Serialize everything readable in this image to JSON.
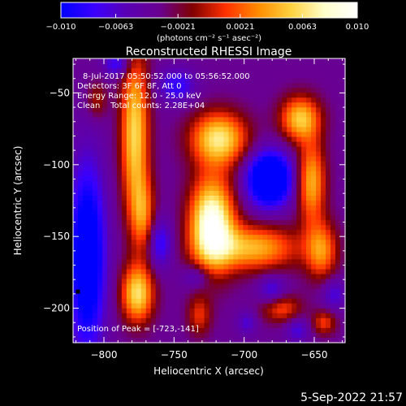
{
  "chart_data": {
    "type": "heatmap",
    "title": "Reconstructed RHESSI Image",
    "xlabel": "Heliocentric X (arcsec)",
    "ylabel": "Heliocentric Y (arcsec)",
    "xlim": [
      -822,
      -628
    ],
    "ylim": [
      -224,
      -26
    ],
    "x_ticks": [
      -800,
      -750,
      -700,
      -650
    ],
    "x_tick_labels": [
      "−800",
      "−750",
      "−700",
      "−650"
    ],
    "y_ticks": [
      -50,
      -100,
      -150,
      -200
    ],
    "y_tick_labels": [
      "−50",
      "−100",
      "−150",
      "−200"
    ],
    "colorbar": {
      "min": -0.01,
      "max": 0.01,
      "ticks": [
        -0.01,
        -0.0063,
        -0.0021,
        0.0021,
        0.0063,
        0.01
      ],
      "tick_labels": [
        "−0.010",
        "−0.0063",
        "−0.0021",
        "0.0021",
        "0.0063",
        "0.010"
      ],
      "unit_label": "(photons cm⁻² s⁻¹ asec⁻²)",
      "colormap": [
        "#0000ff",
        "#3a00ff",
        "#5a00b4",
        "#6a0090",
        "#800000",
        "#ff3000",
        "#ff8c00",
        "#ffd240",
        "#ffffcc",
        "#ffffff"
      ]
    },
    "annotations": [
      "8-Jul-2017 05:50:52.000 to 05:56:52.000",
      "Detectors: 3F 6F 8F, Att 0",
      "Energy Range: 12.0 - 25.0 keV",
      "Clean    Total counts: 2.28E+04"
    ],
    "peak_label": "Position of Peak = [-723,-141]",
    "peak": [
      -723,
      -141
    ],
    "grid": false,
    "sources": [
      {
        "x": -723,
        "y": -141,
        "sx": 11,
        "sy": 22,
        "a": 1.0
      },
      {
        "x": -718,
        "y": -82,
        "sx": 14,
        "sy": 13,
        "a": 0.75
      },
      {
        "x": -693,
        "y": -158,
        "sx": 22,
        "sy": 11,
        "a": 0.6
      },
      {
        "x": -660,
        "y": -68,
        "sx": 10,
        "sy": 11,
        "a": 0.65
      },
      {
        "x": -652,
        "y": -112,
        "sx": 7,
        "sy": 20,
        "a": 0.6
      },
      {
        "x": -645,
        "y": -160,
        "sx": 8,
        "sy": 14,
        "a": 0.5
      },
      {
        "x": -778,
        "y": -78,
        "sx": 7,
        "sy": 40,
        "a": 0.7
      },
      {
        "x": -776,
        "y": -190,
        "sx": 8,
        "sy": 14,
        "a": 0.72
      },
      {
        "x": -772,
        "y": -135,
        "sx": 6,
        "sy": 18,
        "a": 0.42
      },
      {
        "x": -805,
        "y": -55,
        "sx": 5,
        "sy": 9,
        "a": 0.25
      },
      {
        "x": -732,
        "y": -205,
        "sx": 6,
        "sy": 10,
        "a": 0.32
      },
      {
        "x": -674,
        "y": -200,
        "sx": 10,
        "sy": 7,
        "a": 0.4
      },
      {
        "x": -643,
        "y": -210,
        "sx": 6,
        "sy": 6,
        "a": 0.35
      },
      {
        "x": -682,
        "y": -110,
        "sx": 11,
        "sy": 13,
        "a": -0.9
      },
      {
        "x": -812,
        "y": -165,
        "sx": 9,
        "sy": 45,
        "a": -0.7
      },
      {
        "x": -748,
        "y": -45,
        "sx": 9,
        "sy": 8,
        "a": -0.35
      },
      {
        "x": -790,
        "y": -30,
        "sx": 7,
        "sy": 6,
        "a": -0.35
      },
      {
        "x": -680,
        "y": -188,
        "sx": 7,
        "sy": 8,
        "a": -0.3
      },
      {
        "x": -662,
        "y": -215,
        "sx": 6,
        "sy": 6,
        "a": -0.25
      },
      {
        "x": -698,
        "y": -210,
        "sx": 5,
        "sy": 6,
        "a": -0.22
      },
      {
        "x": -636,
        "y": -190,
        "sx": 6,
        "sy": 8,
        "a": -0.25
      },
      {
        "x": -734,
        "y": -178,
        "sx": 7,
        "sy": 6,
        "a": -0.25
      },
      {
        "x": -760,
        "y": -155,
        "sx": 6,
        "sy": 12,
        "a": -0.35
      }
    ]
  },
  "timestamp": "5-Sep-2022 21:57"
}
